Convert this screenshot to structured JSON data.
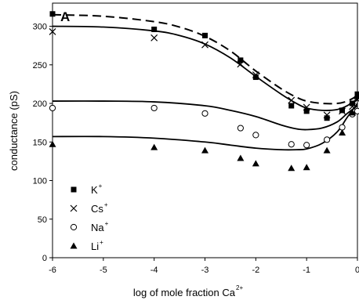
{
  "chart_data": {
    "type": "scatter",
    "panel_label": "A",
    "xlabel": "log of mole fraction Ca",
    "xlabel_superscript": "2+",
    "ylabel": "conductance (pS)",
    "xlim": [
      -6,
      0
    ],
    "ylim": [
      0,
      330
    ],
    "xticks": [
      -6,
      -5,
      -4,
      -3,
      -2,
      -1,
      0
    ],
    "yticks": [
      0,
      50,
      100,
      150,
      200,
      250,
      300
    ],
    "xtick_labels": [
      "-6",
      "-5",
      "-4",
      "-3",
      "-2",
      "-1",
      "0"
    ],
    "ytick_labels": [
      "0",
      "50",
      "100",
      "150",
      "200",
      "250",
      "300"
    ],
    "grid": false,
    "legend_position": "bottom-left",
    "series": [
      {
        "name": "K",
        "name_superscript": "+",
        "marker": "square-filled",
        "points": [
          [
            -6,
            316
          ],
          [
            -4,
            296
          ],
          [
            -3,
            288
          ],
          [
            -2.3,
            256
          ],
          [
            -2.0,
            234
          ],
          [
            -1.3,
            197
          ],
          [
            -1.0,
            190
          ],
          [
            -0.6,
            181
          ],
          [
            -0.3,
            191
          ],
          [
            -0.1,
            200
          ],
          [
            0,
            212
          ]
        ]
      },
      {
        "name": "Cs",
        "name_superscript": "+",
        "marker": "x",
        "points": [
          [
            -6,
            293
          ],
          [
            -4,
            285
          ],
          [
            -3,
            276
          ],
          [
            -2.3,
            251
          ],
          [
            -2.0,
            237
          ],
          [
            -1.3,
            204
          ],
          [
            -1.0,
            195
          ],
          [
            -0.6,
            185
          ],
          [
            -0.3,
            190
          ],
          [
            -0.1,
            196
          ],
          [
            0,
            205
          ]
        ]
      },
      {
        "name": "Na",
        "name_superscript": "+",
        "marker": "circle-open",
        "points": [
          [
            -6,
            194
          ],
          [
            -4,
            194
          ],
          [
            -3,
            187
          ],
          [
            -2.3,
            168
          ],
          [
            -2.0,
            159
          ],
          [
            -1.3,
            147
          ],
          [
            -1.0,
            146
          ],
          [
            -0.6,
            153
          ],
          [
            -0.3,
            169
          ],
          [
            -0.1,
            186
          ],
          [
            0,
            190
          ]
        ]
      },
      {
        "name": "Li",
        "name_superscript": "+",
        "marker": "triangle-filled",
        "points": [
          [
            -6,
            147
          ],
          [
            -4,
            143
          ],
          [
            -3,
            139
          ],
          [
            -2.3,
            129
          ],
          [
            -2.0,
            122
          ],
          [
            -1.3,
            116
          ],
          [
            -1.0,
            117
          ],
          [
            -0.6,
            139
          ],
          [
            -0.3,
            162
          ],
          [
            -0.1,
            188
          ],
          [
            0,
            209
          ]
        ]
      }
    ],
    "fit_curves": [
      {
        "style": "dashed",
        "points": [
          [
            -6,
            315
          ],
          [
            -5,
            313
          ],
          [
            -4,
            306
          ],
          [
            -3.5,
            299
          ],
          [
            -3,
            287
          ],
          [
            -2.5,
            268
          ],
          [
            -2,
            242
          ],
          [
            -1.5,
            219
          ],
          [
            -1.2,
            208
          ],
          [
            -1,
            203
          ],
          [
            -0.7,
            200
          ],
          [
            -0.4,
            200
          ],
          [
            -0.2,
            203
          ],
          [
            0,
            210
          ]
        ]
      },
      {
        "style": "solid",
        "points": [
          [
            -6,
            300
          ],
          [
            -5,
            299
          ],
          [
            -4,
            294
          ],
          [
            -3.5,
            288
          ],
          [
            -3,
            277
          ],
          [
            -2.5,
            259
          ],
          [
            -2,
            235
          ],
          [
            -1.5,
            212
          ],
          [
            -1.2,
            200
          ],
          [
            -1,
            194
          ],
          [
            -0.7,
            191
          ],
          [
            -0.4,
            192
          ],
          [
            -0.2,
            197
          ],
          [
            0,
            206
          ]
        ]
      },
      {
        "style": "solid",
        "points": [
          [
            -6,
            203
          ],
          [
            -5,
            203
          ],
          [
            -4,
            202
          ],
          [
            -3,
            197
          ],
          [
            -2.5,
            191
          ],
          [
            -2,
            183
          ],
          [
            -1.5,
            172
          ],
          [
            -1.2,
            167
          ],
          [
            -1,
            166
          ],
          [
            -0.7,
            168
          ],
          [
            -0.4,
            176
          ],
          [
            -0.2,
            187
          ],
          [
            0,
            197
          ]
        ]
      },
      {
        "style": "solid",
        "points": [
          [
            -6,
            157
          ],
          [
            -5,
            157
          ],
          [
            -4,
            155
          ],
          [
            -3,
            150
          ],
          [
            -2.5,
            146
          ],
          [
            -2,
            142
          ],
          [
            -1.5,
            140
          ],
          [
            -1.2,
            140
          ],
          [
            -1,
            141
          ],
          [
            -0.7,
            148
          ],
          [
            -0.4,
            163
          ],
          [
            -0.2,
            182
          ],
          [
            0,
            200
          ]
        ]
      }
    ]
  }
}
